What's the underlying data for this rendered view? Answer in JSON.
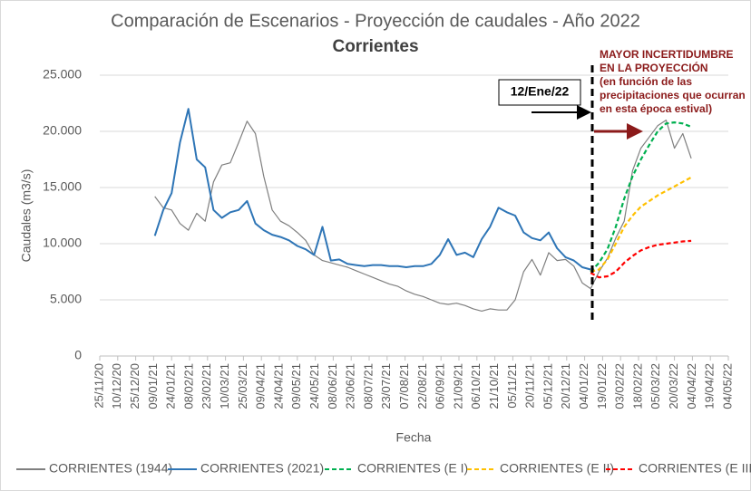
{
  "chart_data": {
    "type": "line",
    "title": "Comparación de Escenarios - Proyección de caudales - Año 2022",
    "subtitle": "Corrientes",
    "x_label": "Fecha",
    "y_label": "Caudales (m3/s)",
    "ylim": [
      0,
      25000
    ],
    "yticks": [
      {
        "value": 0,
        "label": "0"
      },
      {
        "value": 5000,
        "label": "5.000"
      },
      {
        "value": 10000,
        "label": "10.000"
      },
      {
        "value": 15000,
        "label": "15.000"
      },
      {
        "value": 20000,
        "label": "20.000"
      },
      {
        "value": 25000,
        "label": "25.000"
      }
    ],
    "xlim": [
      "25/11/20",
      "04/05/22"
    ],
    "xticks": [
      "25/11/20",
      "10/12/20",
      "25/12/20",
      "09/01/21",
      "24/01/21",
      "08/02/21",
      "23/02/21",
      "10/03/21",
      "25/03/21",
      "09/04/21",
      "24/04/21",
      "09/05/21",
      "24/05/21",
      "08/06/21",
      "23/06/21",
      "08/07/21",
      "23/07/21",
      "07/08/21",
      "22/08/21",
      "06/09/21",
      "21/09/21",
      "06/10/21",
      "21/10/21",
      "05/11/21",
      "20/11/21",
      "05/12/21",
      "20/12/21",
      "04/01/22",
      "19/01/22",
      "03/02/22",
      "18/02/22",
      "05/03/22",
      "20/03/22",
      "04/04/22",
      "19/04/22",
      "04/05/22"
    ],
    "grid": true,
    "legend": "bottom",
    "series": [
      {
        "name": "CORRIENTES (1944)",
        "color": "#7f7f7f",
        "style": "solid",
        "x": [
          "10/01/21",
          "17/01/21",
          "24/01/21",
          "31/01/21",
          "07/02/21",
          "14/02/21",
          "21/02/21",
          "28/02/21",
          "07/03/21",
          "14/03/21",
          "21/03/21",
          "28/03/21",
          "04/04/21",
          "11/04/21",
          "18/04/21",
          "25/04/21",
          "02/05/21",
          "09/05/21",
          "16/05/21",
          "23/05/21",
          "30/05/21",
          "06/06/21",
          "13/06/21",
          "20/06/21",
          "27/06/21",
          "04/07/21",
          "11/07/21",
          "18/07/21",
          "25/07/21",
          "01/08/21",
          "08/08/21",
          "15/08/21",
          "22/08/21",
          "29/08/21",
          "05/09/21",
          "12/09/21",
          "19/09/21",
          "26/09/21",
          "03/10/21",
          "10/10/21",
          "17/10/21",
          "24/10/21",
          "31/10/21",
          "07/11/21",
          "14/11/21",
          "21/11/21",
          "28/11/21",
          "05/12/21",
          "12/12/21",
          "19/12/21",
          "26/12/21",
          "02/01/22",
          "09/01/22",
          "16/01/22",
          "23/01/22",
          "30/01/22",
          "06/02/22",
          "13/02/22",
          "20/02/22",
          "27/02/22",
          "06/03/22",
          "13/03/22",
          "20/03/22",
          "27/03/22",
          "03/04/22"
        ],
        "values": [
          14200,
          13200,
          13000,
          11800,
          11200,
          12700,
          12000,
          15500,
          17000,
          17200,
          19000,
          20900,
          19800,
          16000,
          13000,
          12000,
          11600,
          11000,
          10300,
          9000,
          8500,
          8300,
          8100,
          7900,
          7600,
          7300,
          7000,
          6700,
          6400,
          6200,
          5800,
          5500,
          5300,
          5000,
          4700,
          4600,
          4700,
          4500,
          4200,
          4000,
          4200,
          4100,
          4100,
          5000,
          7500,
          8600,
          7200,
          9200,
          8500,
          8600,
          8000,
          6500,
          6000,
          7500,
          8700,
          10500,
          12000,
          16500,
          18500,
          19500,
          20500,
          21000,
          18500,
          19800,
          17600
        ]
      },
      {
        "name": "CORRIENTES (2021)",
        "color": "#2e75b6",
        "style": "solid",
        "x": [
          "10/01/21",
          "17/01/21",
          "24/01/21",
          "31/01/21",
          "07/02/21",
          "14/02/21",
          "21/02/21",
          "28/02/21",
          "07/03/21",
          "14/03/21",
          "21/03/21",
          "28/03/21",
          "04/04/21",
          "11/04/21",
          "18/04/21",
          "25/04/21",
          "02/05/21",
          "09/05/21",
          "16/05/21",
          "23/05/21",
          "30/05/21",
          "06/06/21",
          "13/06/21",
          "20/06/21",
          "27/06/21",
          "04/07/21",
          "11/07/21",
          "18/07/21",
          "25/07/21",
          "01/08/21",
          "08/08/21",
          "15/08/21",
          "22/08/21",
          "29/08/21",
          "05/09/21",
          "12/09/21",
          "19/09/21",
          "26/09/21",
          "03/10/21",
          "10/10/21",
          "17/10/21",
          "24/10/21",
          "31/10/21",
          "07/11/21",
          "14/11/21",
          "21/11/21",
          "28/11/21",
          "05/12/21",
          "12/12/21",
          "19/12/21",
          "26/12/21",
          "02/01/22",
          "09/01/22"
        ],
        "values": [
          10700,
          13000,
          14500,
          19000,
          22000,
          17500,
          16800,
          13000,
          12300,
          12800,
          13000,
          13800,
          11800,
          11200,
          10800,
          10600,
          10300,
          9800,
          9500,
          9000,
          11500,
          8500,
          8600,
          8200,
          8100,
          8000,
          8100,
          8100,
          8000,
          8000,
          7900,
          8000,
          8000,
          8200,
          9000,
          10400,
          9000,
          9200,
          8800,
          10400,
          11500,
          13200,
          12800,
          12500,
          11000,
          10500,
          10300,
          11000,
          9600,
          8800,
          8500,
          7900,
          7700
        ]
      },
      {
        "name": "CORRIENTES (E I)",
        "color": "#00b050",
        "style": "dashed",
        "x": [
          "09/01/22",
          "16/01/22",
          "23/01/22",
          "30/01/22",
          "06/02/22",
          "13/02/22",
          "20/02/22",
          "27/02/22",
          "06/03/22",
          "13/03/22",
          "20/03/22",
          "27/03/22",
          "03/04/22"
        ],
        "values": [
          7500,
          8300,
          9500,
          11500,
          14000,
          16000,
          17500,
          18800,
          20000,
          20700,
          20800,
          20700,
          20400
        ]
      },
      {
        "name": "CORRIENTES (E II)",
        "color": "#ffc000",
        "style": "dashed",
        "x": [
          "09/01/22",
          "16/01/22",
          "23/01/22",
          "30/01/22",
          "06/02/22",
          "13/02/22",
          "20/02/22",
          "27/02/22",
          "06/03/22",
          "13/03/22",
          "20/03/22",
          "27/03/22",
          "03/04/22"
        ],
        "values": [
          7500,
          7700,
          8600,
          10000,
          11500,
          12500,
          13300,
          13800,
          14300,
          14700,
          15100,
          15500,
          15900
        ]
      },
      {
        "name": "CORRIENTES (E III)",
        "color": "#ff0000",
        "style": "dashed",
        "x": [
          "09/01/22",
          "16/01/22",
          "23/01/22",
          "30/01/22",
          "06/02/22",
          "13/02/22",
          "20/02/22",
          "27/02/22",
          "06/03/22",
          "13/03/22",
          "20/03/22",
          "27/03/22",
          "03/04/22"
        ],
        "values": [
          7400,
          7000,
          7100,
          7500,
          8300,
          8900,
          9400,
          9700,
          9900,
          10000,
          10100,
          10200,
          10250
        ]
      }
    ],
    "annotations": {
      "date_box": "12/Ene/22",
      "note": [
        "MAYOR INCERTIDUMBRE",
        "EN LA PROYECCIÓN",
        "(en función de las",
        "precipitaciones que ocurran",
        "en esta época estival)"
      ]
    }
  }
}
